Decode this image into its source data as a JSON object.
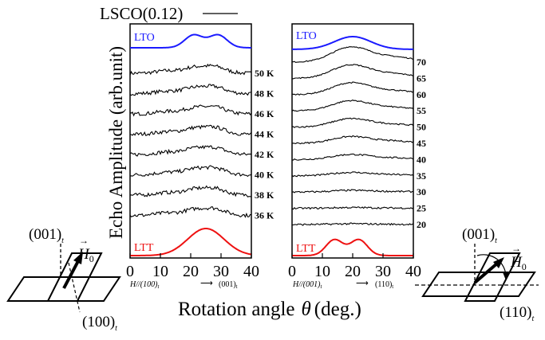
{
  "figure": {
    "main_title": "LSCO(0.12)",
    "ylabel": "Echo Amplitude (arb.unit)",
    "xlabel_main": "Rotation angle",
    "xlabel_symbol": "θ",
    "xlabel_unit": "(deg.)",
    "colors": {
      "lto": "#1a1aff",
      "ltt": "#ee1111",
      "trace": "#000000"
    }
  },
  "chart_data": [
    {
      "type": "line",
      "panel": "left",
      "xlim": [
        0,
        40
      ],
      "x_ticks": [
        "0",
        "10",
        "20",
        "30",
        "40"
      ],
      "xlabel_left": "H//(100)",
      "xlabel_left_sub": "t",
      "xlabel_right": "(001)",
      "xlabel_right_sub": "t",
      "ref_top_label": "LTO",
      "ref_top_peaks": [
        21,
        29
      ],
      "ref_bottom_label": "LTT",
      "ref_bottom_peaks": [
        25
      ],
      "temperature_labels": [
        "50 K",
        "48 K",
        "46 K",
        "44 K",
        "42 K",
        "40 K",
        "38 K",
        "36 K"
      ]
    },
    {
      "type": "line",
      "panel": "right",
      "xlim": [
        0,
        40
      ],
      "x_ticks": [
        "0",
        "10",
        "20",
        "30",
        "40"
      ],
      "xlabel_left": "H//(001)",
      "xlabel_left_sub": "t",
      "xlabel_right": "(110)",
      "xlabel_right_sub": "t",
      "ref_top_label": "LTO",
      "ref_top_peaks": [
        20
      ],
      "ref_bottom_label": "LTT",
      "ref_bottom_peaks": [
        14,
        22
      ],
      "temperature_labels": [
        "70",
        "65",
        "60",
        "55",
        "50",
        "45",
        "40",
        "35",
        "30",
        "25",
        "20"
      ]
    }
  ],
  "diagrams": {
    "left": {
      "label_top": "(001)",
      "label_top_sub": "t",
      "label_bottom": "(100)",
      "label_bottom_sub": "t",
      "field_label": "H",
      "field_sub": "0"
    },
    "right": {
      "label_top": "(001)",
      "label_top_sub": "t",
      "label_bottom": "(110)",
      "label_bottom_sub": "t",
      "field_label": "H",
      "field_sub": "0"
    }
  }
}
